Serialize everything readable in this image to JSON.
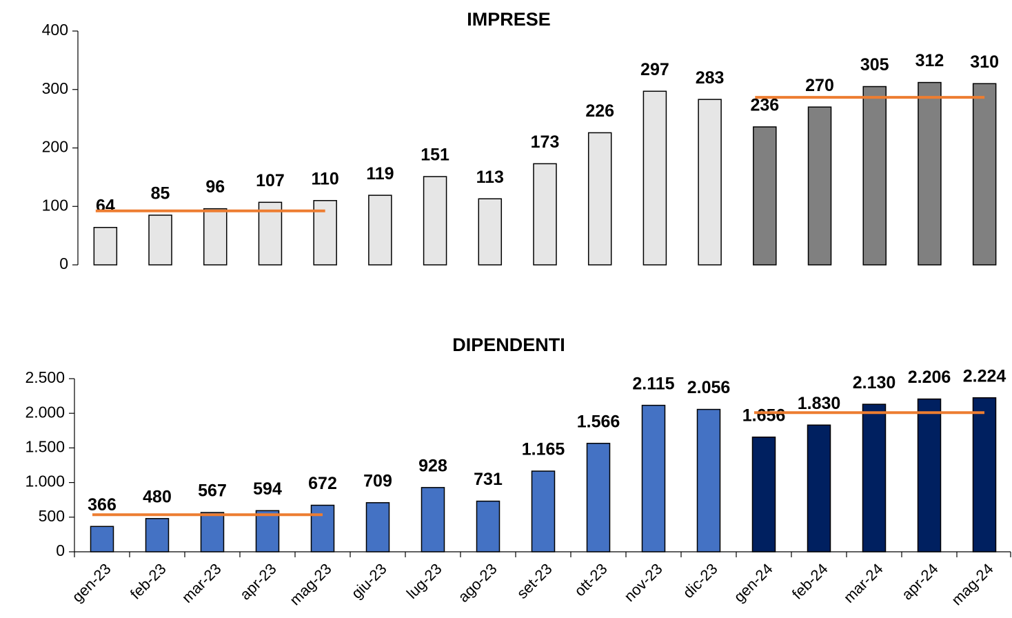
{
  "chart_data": [
    {
      "type": "bar",
      "title": "IMPRESE",
      "values": [
        64,
        85,
        96,
        107,
        110,
        119,
        151,
        113,
        173,
        226,
        297,
        283,
        236,
        270,
        305,
        312,
        310
      ],
      "colors": [
        "#e6e6e6",
        "#e6e6e6",
        "#e6e6e6",
        "#e6e6e6",
        "#e6e6e6",
        "#e6e6e6",
        "#e6e6e6",
        "#e6e6e6",
        "#e6e6e6",
        "#e6e6e6",
        "#e6e6e6",
        "#e6e6e6",
        "#808080",
        "#808080",
        "#808080",
        "#808080",
        "#808080"
      ],
      "ylim": [
        0,
        400
      ],
      "yticks": [
        0,
        100,
        200,
        300,
        400
      ],
      "average_lines": [
        {
          "start": 0,
          "end": 4,
          "value": 92.4,
          "color": "#ed7d31"
        },
        {
          "start": 12,
          "end": 16,
          "value": 286.6,
          "color": "#ed7d31"
        }
      ]
    },
    {
      "type": "bar",
      "title": "DIPENDENTI",
      "categories": [
        "gen-23",
        "feb-23",
        "mar-23",
        "apr-23",
        "mag-23",
        "giu-23",
        "lug-23",
        "ago-23",
        "set-23",
        "ott-23",
        "nov-23",
        "dic-23",
        "gen-24",
        "feb-24",
        "mar-24",
        "apr-24",
        "mag-24"
      ],
      "values": [
        366,
        480,
        567,
        594,
        672,
        709,
        928,
        731,
        1165,
        1566,
        2115,
        2056,
        1656,
        1830,
        2130,
        2206,
        2224
      ],
      "value_labels": [
        "366",
        "480",
        "567",
        "594",
        "672",
        "709",
        "928",
        "731",
        "1.165",
        "1.566",
        "2.115",
        "2.056",
        "1.656",
        "1.830",
        "2.130",
        "2.206",
        "2.224"
      ],
      "colors": [
        "#4472c4",
        "#4472c4",
        "#4472c4",
        "#4472c4",
        "#4472c4",
        "#4472c4",
        "#4472c4",
        "#4472c4",
        "#4472c4",
        "#4472c4",
        "#4472c4",
        "#4472c4",
        "#002060",
        "#002060",
        "#002060",
        "#002060",
        "#002060"
      ],
      "ylim": [
        0,
        2500
      ],
      "yticks": [
        0,
        500,
        {
          "value": 1000,
          "label": "1.000"
        },
        {
          "value": 1500,
          "label": "1.500"
        },
        {
          "value": 2000,
          "label": "2.000"
        },
        {
          "value": 2500,
          "label": "2.500"
        }
      ],
      "average_lines": [
        {
          "start": 0,
          "end": 4,
          "value": 535.8,
          "color": "#ed7d31"
        },
        {
          "start": 12,
          "end": 16,
          "value": 2009.2,
          "color": "#ed7d31"
        }
      ]
    }
  ]
}
